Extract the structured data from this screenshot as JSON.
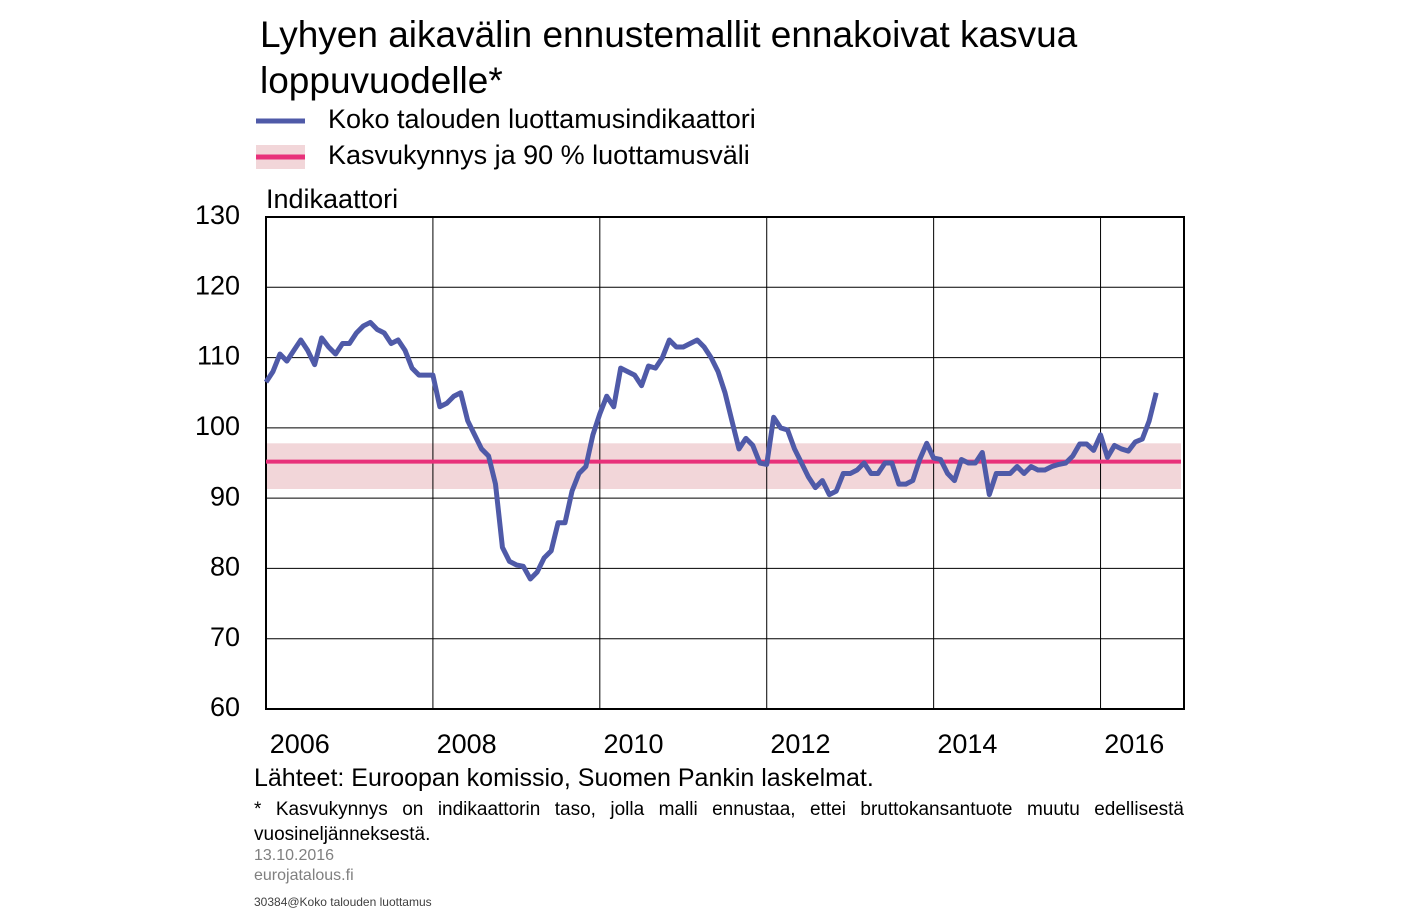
{
  "chart_data": {
    "type": "line",
    "title": "Lyhyen aikavälin ennustemallit ennakoivat kasvua loppuvuodelle*",
    "y_label": "Indikaattori",
    "source": "Lähteet: Euroopan komissio, Suomen Pankin laskelmat.",
    "note": "* Kasvukynnys on indikaattorin taso, jolla malli ennustaa, ettei bruttokansantuote muutu edellisestä vuosineljänneksestä.",
    "date": "13.10.2016",
    "website": "eurojatalous.fi",
    "code": "30384@Koko talouden luottamus",
    "xlim": [
      2006,
      2017
    ],
    "xticks": [
      2006,
      2008,
      2010,
      2012,
      2014,
      2016
    ],
    "ylim": [
      60,
      130
    ],
    "yticks": [
      60,
      70,
      80,
      90,
      100,
      110,
      120,
      130
    ],
    "grid": true,
    "x": [
      2006,
      2006.083,
      2006.167,
      2006.25,
      2006.333,
      2006.417,
      2006.5,
      2006.583,
      2006.667,
      2006.75,
      2006.833,
      2006.917,
      2007,
      2007.083,
      2007.167,
      2007.25,
      2007.333,
      2007.417,
      2007.5,
      2007.583,
      2007.667,
      2007.75,
      2007.833,
      2007.917,
      2008,
      2008.083,
      2008.167,
      2008.25,
      2008.333,
      2008.417,
      2008.5,
      2008.583,
      2008.667,
      2008.75,
      2008.833,
      2008.917,
      2009,
      2009.083,
      2009.167,
      2009.25,
      2009.333,
      2009.417,
      2009.5,
      2009.583,
      2009.667,
      2009.75,
      2009.833,
      2009.917,
      2010,
      2010.083,
      2010.167,
      2010.25,
      2010.333,
      2010.417,
      2010.5,
      2010.583,
      2010.667,
      2010.75,
      2010.833,
      2010.917,
      2011,
      2011.083,
      2011.167,
      2011.25,
      2011.333,
      2011.417,
      2011.5,
      2011.583,
      2011.667,
      2011.75,
      2011.833,
      2011.917,
      2012,
      2012.083,
      2012.167,
      2012.25,
      2012.333,
      2012.417,
      2012.5,
      2012.583,
      2012.667,
      2012.75,
      2012.833,
      2012.917,
      2013,
      2013.083,
      2013.167,
      2013.25,
      2013.333,
      2013.417,
      2013.5,
      2013.583,
      2013.667,
      2013.75,
      2013.833,
      2013.917,
      2014,
      2014.083,
      2014.167,
      2014.25,
      2014.333,
      2014.417,
      2014.5,
      2014.583,
      2014.667,
      2014.75,
      2014.833,
      2014.917,
      2015,
      2015.083,
      2015.167,
      2015.25,
      2015.333,
      2015.417,
      2015.5,
      2015.583,
      2015.667,
      2015.75,
      2015.833,
      2015.917,
      2016,
      2016.083,
      2016.167,
      2016.25,
      2016.333,
      2016.417,
      2016.5,
      2016.583,
      2016.667
    ],
    "series": [
      {
        "name": "Koko talouden luottamusindikaattori",
        "color": "#4f5aa8",
        "values": [
          106.5,
          108,
          110.5,
          109.5,
          111,
          112.5,
          111,
          109,
          112.8,
          111.5,
          110.5,
          112,
          112,
          113.5,
          114.5,
          115,
          114,
          113.5,
          112,
          112.5,
          111,
          108.5,
          107.5,
          107.5,
          107.5,
          103,
          103.5,
          104.5,
          105,
          101,
          99,
          97,
          96,
          92,
          83,
          81,
          80.5,
          80.3,
          78.5,
          79.5,
          81.5,
          82.5,
          86.5,
          86.5,
          91,
          93.5,
          94.5,
          99,
          102,
          104.5,
          103,
          108.5,
          108,
          107.5,
          106,
          108.8,
          108.5,
          110,
          112.5,
          111.5,
          111.5,
          112,
          112.5,
          111.5,
          110,
          108,
          105,
          101,
          97,
          98.5,
          97.5,
          95,
          94.8,
          101.5,
          100,
          99.7,
          97,
          95,
          93,
          91.5,
          92.5,
          90.5,
          91,
          93.5,
          93.5,
          94,
          95,
          93.5,
          93.5,
          95,
          95,
          92,
          92,
          92.5,
          95.5,
          97.8,
          95.7,
          95.5,
          93.5,
          92.5,
          95.5,
          95,
          95,
          96.5,
          90.5,
          93.5,
          93.5,
          93.5,
          94.5,
          93.5,
          94.5,
          94,
          94,
          94.5,
          94.8,
          95,
          96,
          97.7,
          97.7,
          96.8,
          99,
          95.8,
          97.5,
          97,
          96.7,
          98,
          98.4,
          101,
          105
        ]
      }
    ],
    "threshold": {
      "name": "Kasvukynnys ja 90 % luottamusväli",
      "value": 95.2,
      "lower": 91.3,
      "upper": 97.8,
      "color": "#e8317a",
      "band_color": "#f2d6d9"
    }
  }
}
